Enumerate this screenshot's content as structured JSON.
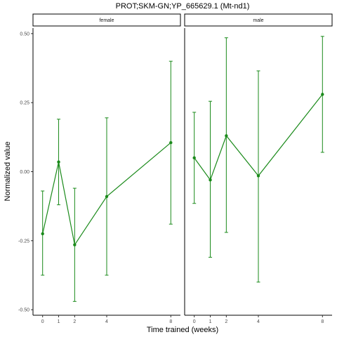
{
  "chart_data": {
    "type": "line",
    "title": "PROT;SKM-GN;YP_665629.1 (Mt-nd1)",
    "xlabel": "Time trained (weeks)",
    "ylabel": "Normalized value",
    "x_ticks": [
      0,
      1,
      2,
      4,
      8
    ],
    "y_ticks": [
      0.5,
      0.25,
      0.0,
      -0.25,
      -0.5
    ],
    "y_tick_labels": [
      "0.50",
      "0.25",
      "0.00",
      "-0.25",
      "-0.50"
    ],
    "xlim": [
      -0.6,
      8.6
    ],
    "ylim": [
      -0.52,
      0.52
    ],
    "grid": false,
    "color": "#1a8a1a",
    "panels": [
      {
        "name": "female",
        "x": [
          0,
          1,
          2,
          4,
          8
        ],
        "y": [
          -0.225,
          0.035,
          -0.265,
          -0.09,
          0.105
        ],
        "lower": [
          -0.375,
          -0.12,
          -0.47,
          -0.375,
          -0.19
        ],
        "upper": [
          -0.07,
          0.19,
          -0.06,
          0.195,
          0.4
        ]
      },
      {
        "name": "male",
        "x": [
          0,
          1,
          2,
          4,
          8
        ],
        "y": [
          0.05,
          -0.03,
          0.13,
          -0.015,
          0.28
        ],
        "lower": [
          -0.115,
          -0.31,
          -0.22,
          -0.4,
          0.07
        ],
        "upper": [
          0.215,
          0.255,
          0.485,
          0.365,
          0.49
        ]
      }
    ]
  }
}
